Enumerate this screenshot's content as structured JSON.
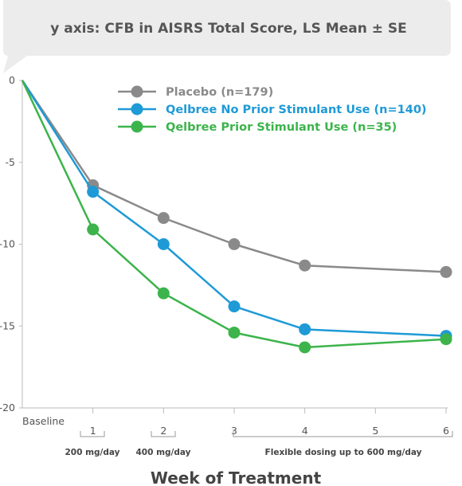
{
  "chart_data": {
    "type": "line",
    "title": "y axis: CFB in AISRS Total Score, LS Mean ± SE",
    "xlabel": "Week of Treatment",
    "ylabel": "",
    "x": [
      0,
      1,
      2,
      3,
      4,
      6
    ],
    "x_tick_labels": [
      "Baseline",
      "1",
      "2",
      "3",
      "4",
      "5",
      "6"
    ],
    "x_tick_values": [
      0,
      1,
      2,
      3,
      4,
      5,
      6
    ],
    "y_tick_labels": [
      "0",
      "-5",
      "-10",
      "-15",
      "-20"
    ],
    "y_tick_values": [
      0,
      -5,
      -10,
      -15,
      -20
    ],
    "xlim": [
      0,
      6
    ],
    "ylim": [
      -20,
      0
    ],
    "grid": false,
    "legend_position": "top-right",
    "series": [
      {
        "name": "Placebo (n=179)",
        "color": "#8a8a8a",
        "values": [
          0,
          -6.4,
          -8.4,
          -10.0,
          -11.3,
          -11.7
        ]
      },
      {
        "name": "Qelbree No Prior Stimulant Use (n=140)",
        "color": "#1e9ad6",
        "values": [
          0,
          -6.8,
          -10.0,
          -13.8,
          -15.2,
          -15.6
        ]
      },
      {
        "name": "Qelbree Prior Stimulant Use (n=35)",
        "color": "#3cb44b",
        "values": [
          0,
          -9.1,
          -13.0,
          -15.4,
          -16.3,
          -15.8
        ]
      }
    ],
    "dosing_annotations": [
      "200 mg/day",
      "400 mg/day",
      "Flexible dosing up to 600 mg/day"
    ]
  }
}
